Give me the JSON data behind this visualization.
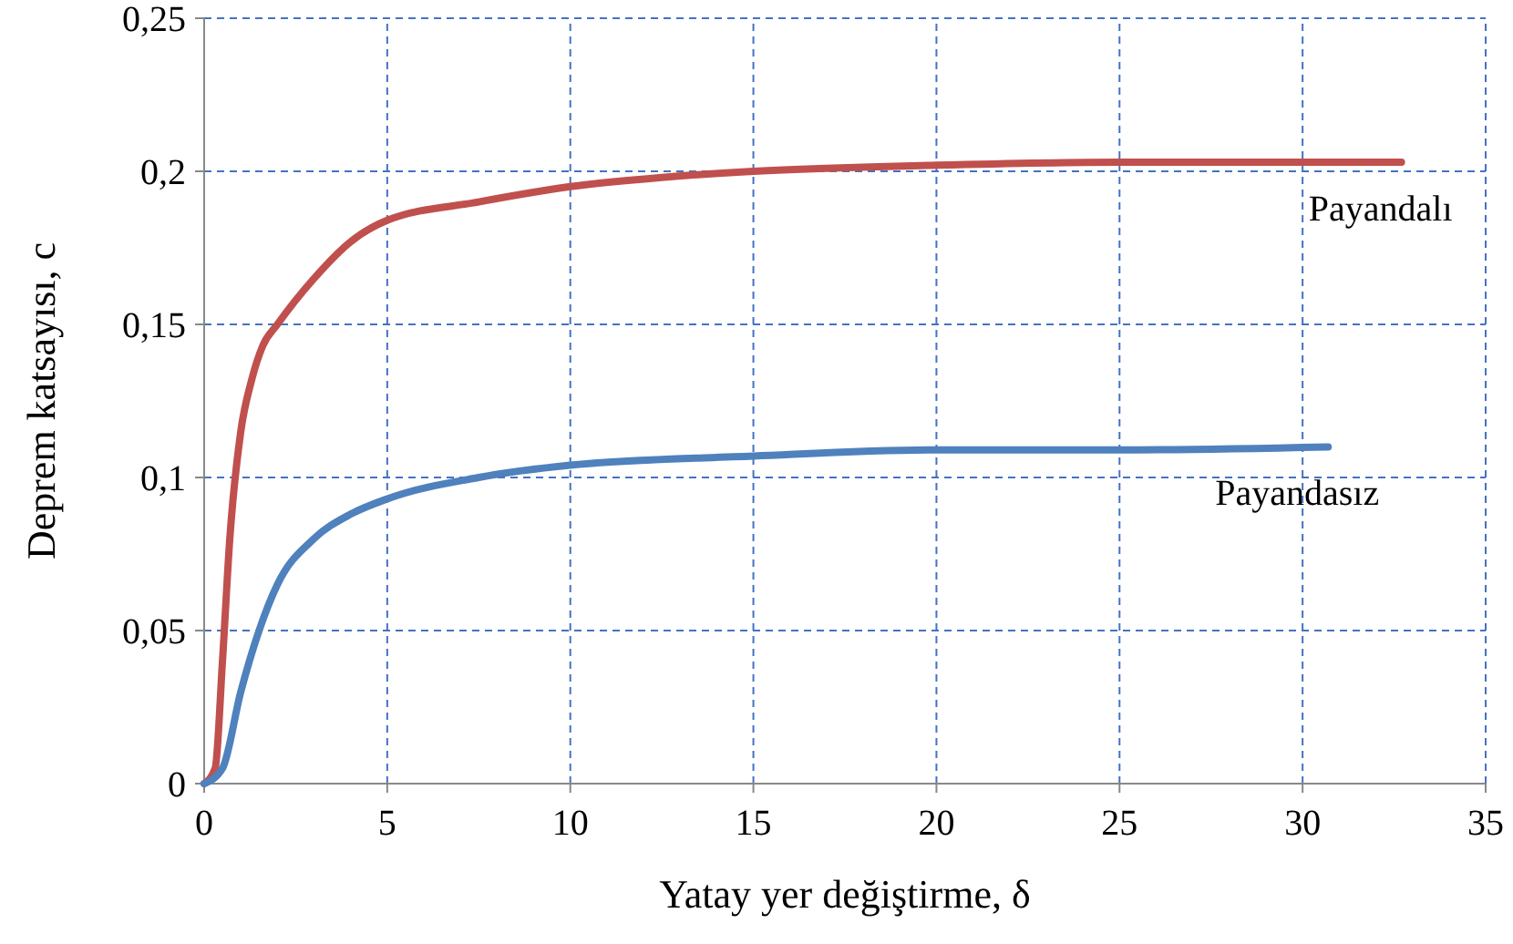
{
  "chart_data": {
    "type": "line",
    "xlabel": "Yatay yer değiştirme, δ",
    "ylabel": "Deprem katsayısı, c",
    "xlim": [
      0,
      35
    ],
    "xticks": [
      0,
      5,
      10,
      15,
      20,
      25,
      30,
      35
    ],
    "ylim": [
      0,
      0.25
    ],
    "yticks": [
      {
        "value": 0,
        "label": "0"
      },
      {
        "value": 0.05,
        "label": "0,05"
      },
      {
        "value": 0.1,
        "label": "0,1"
      },
      {
        "value": 0.15,
        "label": "0,15"
      },
      {
        "value": 0.2,
        "label": "0,2"
      },
      {
        "value": 0.25,
        "label": "0,25"
      }
    ],
    "grid": true,
    "marker": "none",
    "line_style": "solid",
    "series": [
      {
        "name": "Payandalı",
        "color": "#c0504d",
        "x": [
          0,
          0.3,
          0.5,
          0.7,
          1,
          1.3,
          1.6,
          2,
          3,
          4,
          5,
          7.5,
          10,
          12.5,
          15,
          20,
          25,
          30,
          32.7
        ],
        "values": [
          0,
          0.005,
          0.04,
          0.08,
          0.115,
          0.132,
          0.143,
          0.15,
          0.165,
          0.177,
          0.184,
          0.19,
          0.195,
          0.198,
          0.2,
          0.202,
          0.203,
          0.203,
          0.203
        ]
      },
      {
        "name": "Payandasız",
        "color": "#4f81bd",
        "x": [
          0,
          0.5,
          1,
          1.5,
          2,
          3,
          4,
          5,
          7.5,
          10,
          15,
          20,
          25,
          30.7
        ],
        "values": [
          0,
          0.005,
          0.03,
          0.05,
          0.065,
          0.08,
          0.088,
          0.093,
          0.1,
          0.104,
          0.107,
          0.109,
          0.109,
          0.11
        ]
      }
    ]
  }
}
